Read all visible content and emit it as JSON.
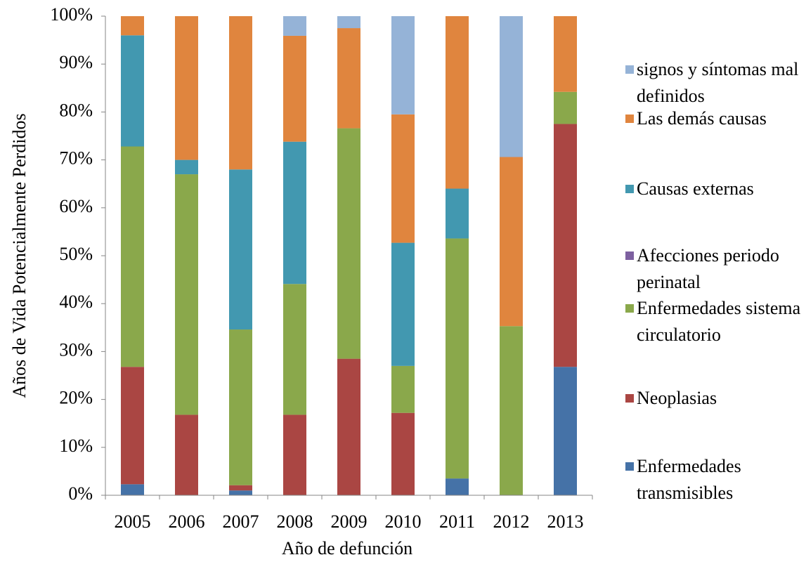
{
  "chart_data": {
    "type": "stacked_bar",
    "y_label": "Años de Vida Potencialmente Perdidos",
    "x_label": "Año de defunción",
    "categories": [
      "2005",
      "2006",
      "2007",
      "2008",
      "2009",
      "2010",
      "2011",
      "2012",
      "2013"
    ],
    "series": [
      {
        "name": "Enfermedades transmisibles",
        "color": "#4572a7",
        "values": [
          2.3,
          0,
          1,
          0,
          0,
          0,
          3.5,
          0,
          26.8
        ]
      },
      {
        "name": "Neoplasias",
        "color": "#aa4643",
        "values": [
          24.5,
          16.8,
          1.1,
          16.8,
          28.5,
          17.2,
          0,
          0,
          50.7
        ]
      },
      {
        "name": "Enfermedades sistema circulatorio",
        "color": "#8aa84b",
        "values": [
          46,
          50.2,
          32.5,
          27.3,
          48.1,
          9.8,
          50.1,
          35.3,
          6.7
        ]
      },
      {
        "name": "Afecciones periodo perinatal",
        "color": "#7d60a0",
        "values": [
          0,
          0,
          0,
          0,
          0,
          0,
          0,
          0,
          0
        ]
      },
      {
        "name": "Causas externas",
        "color": "#4298b0",
        "values": [
          23.2,
          3,
          33.4,
          29.7,
          0,
          25.7,
          10.4,
          0,
          0
        ]
      },
      {
        "name": "Las demás causas",
        "color": "#e0853e",
        "values": [
          4,
          30,
          32,
          22.1,
          20.9,
          26.8,
          36,
          35.3,
          15.8
        ]
      },
      {
        "name": "signos y síntomas mal definidos",
        "color": "#95b3d7",
        "values": [
          0,
          0,
          0,
          4.1,
          2.5,
          20.5,
          0,
          29.4,
          0
        ]
      }
    ],
    "ylim": [
      0,
      100
    ],
    "yticks": [
      {
        "value": 0,
        "label": "0%"
      },
      {
        "value": 10,
        "label": "10%"
      },
      {
        "value": 20,
        "label": "20%"
      },
      {
        "value": 30,
        "label": "30%"
      },
      {
        "value": 40,
        "label": "40%"
      },
      {
        "value": 50,
        "label": "50%"
      },
      {
        "value": 60,
        "label": "60%"
      },
      {
        "value": 70,
        "label": "70%"
      },
      {
        "value": 80,
        "label": "80%"
      },
      {
        "value": 90,
        "label": "90%"
      },
      {
        "value": 100,
        "label": "100%"
      }
    ],
    "legend": "right"
  }
}
